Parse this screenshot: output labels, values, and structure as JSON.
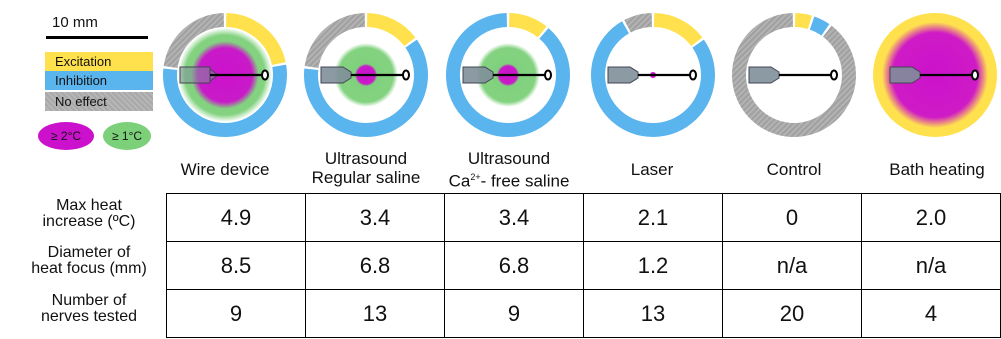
{
  "legend": {
    "scale_label": "10 mm",
    "excitation_label": "Excitation",
    "inhibition_label": "Inhibition",
    "no_effect_label": "No effect",
    "heat_2_label": "≥ 2°C",
    "heat_1_label": "≥ 1°C"
  },
  "colors": {
    "excitation": "#ffe14d",
    "inhibition": "#5ab4ee",
    "no_effect": "#a9a9a9",
    "heat_2": "#cc11cc",
    "heat_1": "#7dd07a",
    "probe": "#7f8f99"
  },
  "conditions": [
    {
      "label_line1": "Wire device",
      "label_line2": "",
      "label_sup": "",
      "label_rest": "",
      "ring": {
        "excitation": 0.22,
        "inhibition": 0.55,
        "no_effect": 0.23
      },
      "heat_2_diameter_mm": 8.5,
      "heat_1_diameter_mm": 10,
      "probe": "wire"
    },
    {
      "label_line1": "Ultrasound",
      "label_line2": "Regular saline",
      "label_sup": "",
      "label_rest": "",
      "ring": {
        "excitation": 0.15,
        "inhibition": 0.62,
        "no_effect": 0.23
      },
      "heat_2_diameter_mm": 4.0,
      "heat_1_diameter_mm": 6.8,
      "probe": "probe"
    },
    {
      "label_line1": "Ultrasound",
      "label_line2": "Ca",
      "label_sup": "2+",
      "label_rest": "- free saline",
      "ring": {
        "excitation": 0.11,
        "inhibition": 0.89,
        "no_effect": 0
      },
      "heat_2_diameter_mm": 4.0,
      "heat_1_diameter_mm": 6.8,
      "probe": "probe"
    },
    {
      "label_line1": "Laser",
      "label_line2": "",
      "label_sup": "",
      "label_rest": "",
      "ring": {
        "excitation": 0.15,
        "inhibition": 0.77,
        "no_effect": 0.08
      },
      "heat_2_diameter_mm": 1.2,
      "heat_1_diameter_mm": 1.2,
      "probe": "probe"
    },
    {
      "label_line1": "Control",
      "label_line2": "",
      "label_sup": "",
      "label_rest": "",
      "ring": {
        "excitation": 0.05,
        "inhibition": 0.05,
        "no_effect": 0.9
      },
      "heat_2_diameter_mm": 0,
      "heat_1_diameter_mm": 0,
      "probe": "probe"
    },
    {
      "label_line1": "Bath heating",
      "label_line2": "",
      "label_sup": "",
      "label_rest": "",
      "ring": {
        "excitation": 1.0,
        "inhibition": 0,
        "no_effect": 0
      },
      "heat_2_diameter_mm": 12,
      "heat_1_diameter_mm": 12,
      "probe": "probe",
      "bath": true
    }
  ],
  "table": {
    "rows": [
      {
        "label_line1": "Max heat",
        "label_line2": "increase (ºC)",
        "values": [
          "4.9",
          "3.4",
          "3.4",
          "2.1",
          "0",
          "2.0"
        ]
      },
      {
        "label_line1": "Diameter of",
        "label_line2": "heat focus (mm)",
        "values": [
          "8.5",
          "6.8",
          "6.8",
          "1.2",
          "n/a",
          "n/a"
        ]
      },
      {
        "label_line1": "Number of",
        "label_line2": "nerves tested",
        "values": [
          "9",
          "13",
          "9",
          "13",
          "20",
          "4"
        ]
      }
    ]
  }
}
